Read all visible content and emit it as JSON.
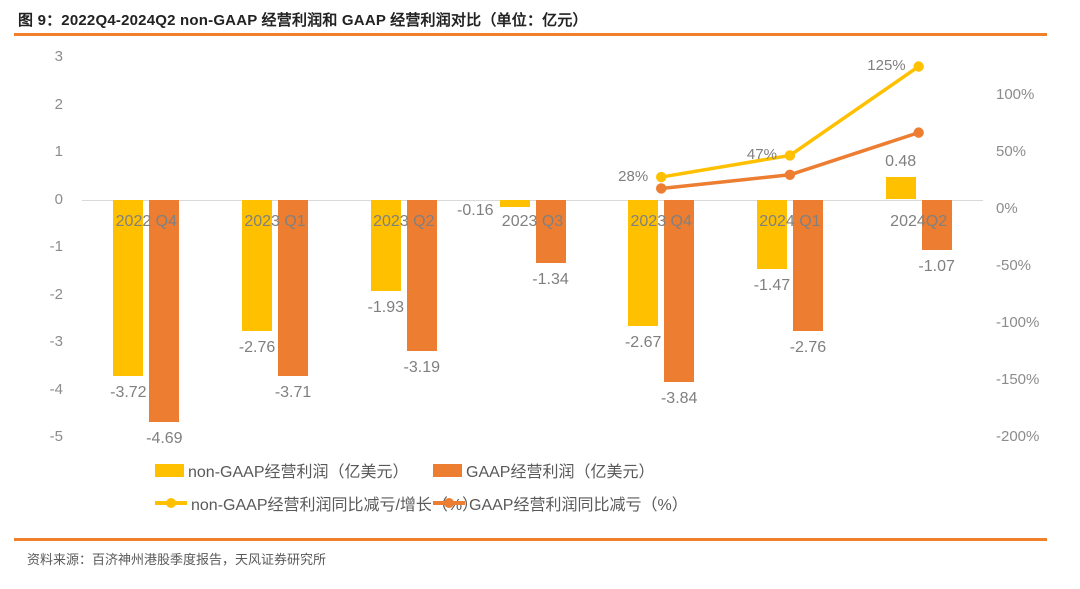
{
  "title": "图 9：2022Q4-2024Q2 non-GAAP 经营利润和 GAAP 经营利润对比（单位：亿元）",
  "source": "资料来源：百济神州港股季度报告，天风证券研究所",
  "colors": {
    "yellow": "#FFC000",
    "orange": "#ED7D31",
    "accent_rule": "#F0802A",
    "axis_text": "#8C8C8C",
    "label_text": "#7F7F7F",
    "legend_text": "#595959",
    "zero_line": "#D9D9D9"
  },
  "chart_data": {
    "type": "bar",
    "subtype": "grouped bars with two overlay lines, dual y-axis",
    "categories": [
      "2022 Q4",
      "2023 Q1",
      "2023 Q2",
      "2023 Q3",
      "2023 Q4",
      "2024 Q1",
      "2024Q2"
    ],
    "series": [
      {
        "name": "non-GAAP经营利润（亿美元）",
        "type": "bar",
        "color_key": "yellow",
        "values": [
          -3.72,
          -2.76,
          -1.93,
          -0.16,
          -2.67,
          -1.47,
          0.48
        ],
        "labels": [
          "-3.72",
          "-2.76",
          "-1.93",
          "-0.16",
          "-2.67",
          "-1.47",
          "0.48"
        ],
        "label_side": [
          null,
          null,
          null,
          "left",
          null,
          null,
          null
        ]
      },
      {
        "name": "GAAP经营利润（亿美元）",
        "type": "bar",
        "color_key": "orange",
        "values": [
          -4.69,
          -3.71,
          -3.19,
          -1.34,
          -3.84,
          -2.76,
          -1.07
        ],
        "labels": [
          "-4.69",
          "-3.71",
          "-3.19",
          "-1.34",
          "-3.84",
          "-2.76",
          "-1.07"
        ],
        "label_side": [
          null,
          null,
          null,
          null,
          null,
          null,
          null
        ]
      },
      {
        "name": "non-GAAP经营利润同比减亏/增长（%）",
        "type": "line",
        "color_key": "yellow",
        "values": [
          null,
          null,
          null,
          null,
          28,
          47,
          125
        ],
        "labels": [
          null,
          null,
          null,
          null,
          "28%",
          "47%",
          "125%"
        ],
        "label_side": [
          null,
          null,
          null,
          null,
          null,
          null,
          null
        ]
      },
      {
        "name": "GAAP经营利润同比减亏（%）",
        "type": "line",
        "color_key": "orange",
        "values": [
          null,
          null,
          null,
          null,
          18,
          30,
          67
        ],
        "labels": [
          null,
          null,
          null,
          null,
          null,
          null,
          null
        ],
        "label_side": [
          null,
          null,
          null,
          null,
          null,
          null,
          null
        ]
      }
    ],
    "left_axis": {
      "min": -5,
      "max": 3,
      "ticks": [
        "3",
        "2",
        "1",
        "0",
        "-1",
        "-2",
        "-3",
        "-4",
        "-5"
      ]
    },
    "right_axis": {
      "min": -200,
      "max": 133.33,
      "ticks": [
        "100%",
        "50%",
        "0%",
        "-50%",
        "-100%",
        "-150%",
        "-200%"
      ]
    },
    "grid": "only horizontal zero line",
    "legend_position": "bottom"
  }
}
